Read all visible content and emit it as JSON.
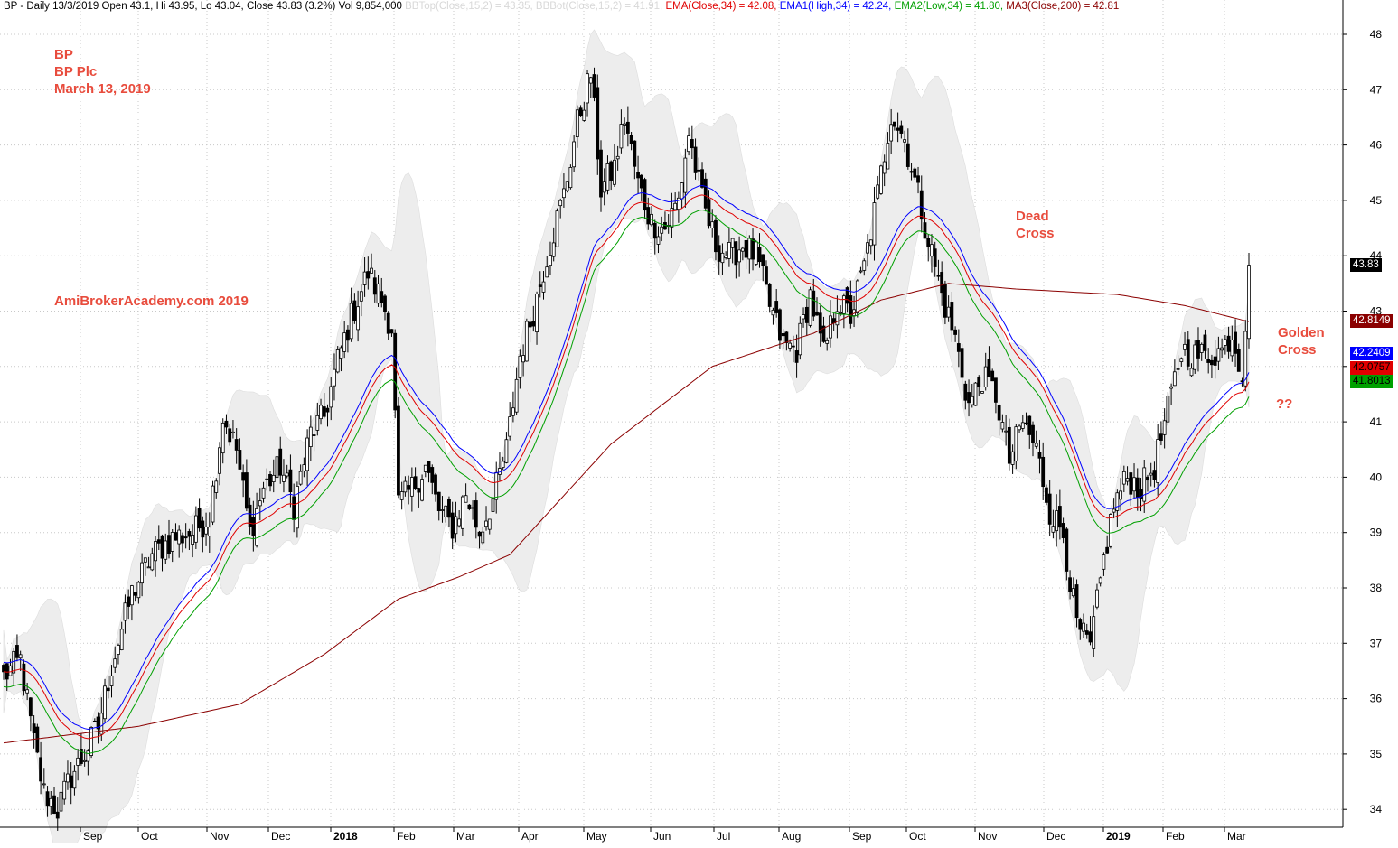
{
  "header": {
    "prefix": "BP - Daily 13/3/2019 Open 43.1, Hi 43.95, Lo 43.04, Close 43.83 (3.2%) Vol 9,854,000 ",
    "bbtop": "BBTop(Close,15,2) = 43.35, ",
    "bbbot": "BBBot(Close,15,2) = 41.91, ",
    "ema": "EMA(Close,34) = 42.08, ",
    "ema1": "EMA1(High,34) = 42.24, ",
    "ema2": "EMA2(Low,34) = 41.80, ",
    "ma3": "MA3(Close,200) = 42.81"
  },
  "annotations": {
    "ticker": "BP",
    "company": "BP Plc",
    "date": "March 13, 2019",
    "site": "AmiBrokerAcademy.com  2019",
    "dead_cross_1": "Dead",
    "dead_cross_2": "Cross",
    "golden_cross_1": "Golden",
    "golden_cross_2": "Cross",
    "question": "??"
  },
  "colors": {
    "ema": "#e00000",
    "ema1": "#0000ff",
    "ema2": "#00a000",
    "ma3": "#8b0000",
    "band": "#ededed",
    "annotation": "#e84c3d",
    "candle": "#000000"
  },
  "chart_data": {
    "type": "candlestick",
    "title": "BP - Daily 13/3/2019",
    "ylim": [
      33.6,
      48.6
    ],
    "y_ticks": [
      "34",
      "35",
      "36",
      "37",
      "38",
      "39",
      "40",
      "41",
      "42",
      "43",
      "44",
      "45",
      "46",
      "47",
      "48"
    ],
    "x_ticks": [
      "Sep",
      "Oct",
      "Nov",
      "Dec",
      "2018",
      "Feb",
      "Mar",
      "Apr",
      "May",
      "Jun",
      "Jul",
      "Aug",
      "Sep",
      "Oct",
      "Nov",
      "Dec",
      "2019",
      "Feb",
      "Mar"
    ],
    "x_ticks_bold": [
      "2018",
      "2019"
    ],
    "close_anchors": [
      [
        0,
        36.4
      ],
      [
        5,
        36.7
      ],
      [
        9,
        35.2
      ],
      [
        12,
        34.3
      ],
      [
        16,
        34.0
      ],
      [
        20,
        34.6
      ],
      [
        24,
        35.0
      ],
      [
        28,
        35.5
      ],
      [
        32,
        36.6
      ],
      [
        38,
        37.9
      ],
      [
        44,
        38.6
      ],
      [
        50,
        38.9
      ],
      [
        56,
        39.0
      ],
      [
        61,
        39.3
      ],
      [
        65,
        41.1
      ],
      [
        69,
        40.5
      ],
      [
        73,
        39.0
      ],
      [
        77,
        39.8
      ],
      [
        82,
        40.2
      ],
      [
        86,
        39.5
      ],
      [
        91,
        40.8
      ],
      [
        95,
        41.1
      ],
      [
        99,
        42.1
      ],
      [
        103,
        42.9
      ],
      [
        108,
        43.7
      ],
      [
        112,
        43.2
      ],
      [
        115,
        42.7
      ],
      [
        117,
        39.5
      ],
      [
        121,
        39.8
      ],
      [
        125,
        40.2
      ],
      [
        129,
        39.4
      ],
      [
        133,
        39.1
      ],
      [
        137,
        39.7
      ],
      [
        141,
        39.0
      ],
      [
        145,
        39.6
      ],
      [
        149,
        40.5
      ],
      [
        153,
        42.2
      ],
      [
        157,
        43.0
      ],
      [
        161,
        44.0
      ],
      [
        166,
        45.1
      ],
      [
        170,
        46.4
      ],
      [
        174,
        47.3
      ],
      [
        177,
        45.2
      ],
      [
        181,
        45.6
      ],
      [
        184,
        46.5
      ],
      [
        188,
        45.3
      ],
      [
        192,
        44.6
      ],
      [
        196,
        44.5
      ],
      [
        200,
        45.0
      ],
      [
        203,
        46.2
      ],
      [
        207,
        45.0
      ],
      [
        211,
        44.2
      ],
      [
        215,
        44.0
      ],
      [
        219,
        44.2
      ],
      [
        223,
        44.0
      ],
      [
        227,
        43.1
      ],
      [
        231,
        42.4
      ],
      [
        235,
        42.3
      ],
      [
        239,
        43.3
      ],
      [
        243,
        42.2
      ],
      [
        247,
        43.2
      ],
      [
        251,
        42.9
      ],
      [
        255,
        43.8
      ],
      [
        259,
        45.1
      ],
      [
        263,
        46.6
      ],
      [
        267,
        46.1
      ],
      [
        271,
        45.1
      ],
      [
        274,
        44.3
      ],
      [
        278,
        43.3
      ],
      [
        282,
        42.5
      ],
      [
        286,
        41.3
      ],
      [
        290,
        41.8
      ],
      [
        294,
        41.5
      ],
      [
        298,
        40.3
      ],
      [
        302,
        41.0
      ],
      [
        306,
        40.5
      ],
      [
        310,
        39.4
      ],
      [
        314,
        39.0
      ],
      [
        318,
        37.3
      ],
      [
        322,
        36.9
      ],
      [
        326,
        38.5
      ],
      [
        329,
        39.5
      ],
      [
        333,
        40.0
      ],
      [
        337,
        39.8
      ],
      [
        341,
        40.2
      ],
      [
        345,
        41.2
      ],
      [
        349,
        42.3
      ],
      [
        353,
        42.2
      ],
      [
        357,
        42.2
      ],
      [
        361,
        42.3
      ],
      [
        364,
        42.6
      ],
      [
        367,
        41.9
      ],
      [
        369,
        43.8
      ]
    ],
    "ma200_anchors": [
      [
        0,
        35.2
      ],
      [
        40,
        35.5
      ],
      [
        70,
        35.9
      ],
      [
        95,
        36.8
      ],
      [
        117,
        37.8
      ],
      [
        135,
        38.2
      ],
      [
        150,
        38.6
      ],
      [
        180,
        40.6
      ],
      [
        210,
        42.0
      ],
      [
        240,
        42.6
      ],
      [
        260,
        43.2
      ],
      [
        280,
        43.5
      ],
      [
        300,
        43.4
      ],
      [
        330,
        43.3
      ],
      [
        350,
        43.1
      ],
      [
        369,
        42.81
      ]
    ],
    "last_values": {
      "close": "43.83",
      "ma3": "42.8149",
      "ema1": "42.2409",
      "ema": "42.0757",
      "ema2": "41.8013"
    }
  }
}
